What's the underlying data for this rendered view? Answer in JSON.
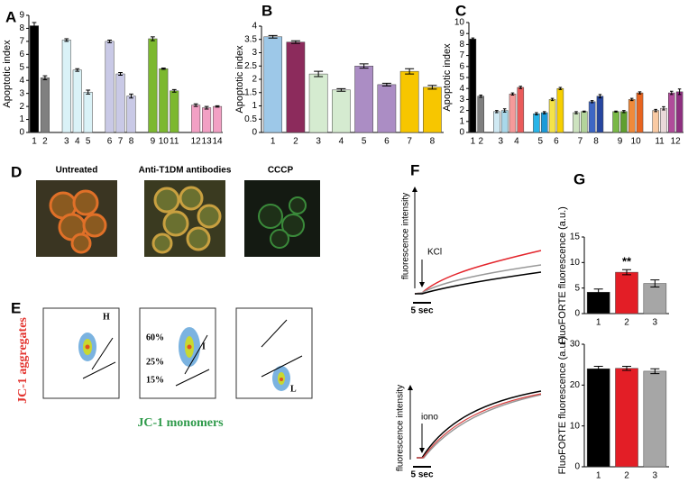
{
  "chart_data": [
    {
      "panel": "A",
      "type": "bar",
      "ylabel": "Apoptotic index",
      "categories": [
        "1",
        "2",
        null,
        "3",
        "4",
        "5",
        null,
        "6",
        "7",
        "8",
        null,
        "9",
        "10",
        "11",
        null,
        "12",
        "13",
        "14"
      ],
      "values": [
        8.2,
        4.2,
        null,
        7.1,
        4.8,
        3.1,
        null,
        7.0,
        4.5,
        2.8,
        null,
        7.2,
        4.9,
        3.2,
        null,
        2.1,
        1.9,
        2.0
      ],
      "errors": [
        0.25,
        0.15,
        null,
        0.1,
        0.1,
        0.15,
        null,
        0.1,
        0.1,
        0.15,
        null,
        0.15,
        0.05,
        0.1,
        null,
        0.1,
        0.1,
        0.05
      ],
      "colors": [
        "#000000",
        "#808080",
        null,
        "#daf2f7",
        "#daf2f7",
        "#daf2f7",
        null,
        "#c9c9e6",
        "#c9c9e6",
        "#c9c9e6",
        null,
        "#7cb82f",
        "#7cb82f",
        "#7cb82f",
        null,
        "#f2a0c4",
        "#f2a0c4",
        "#f2a0c4"
      ],
      "ylim": [
        0,
        9
      ],
      "yticks": [
        0,
        1,
        2,
        3,
        4,
        5,
        6,
        7,
        8,
        9
      ]
    },
    {
      "panel": "B",
      "type": "bar",
      "ylabel": "Apoptotic index",
      "categories": [
        "1",
        "2",
        "3",
        "4",
        "5",
        "6",
        "7",
        "8"
      ],
      "values": [
        3.6,
        3.4,
        2.2,
        1.6,
        2.5,
        1.8,
        2.3,
        1.7
      ],
      "errors": [
        0.05,
        0.05,
        0.1,
        0.05,
        0.08,
        0.05,
        0.1,
        0.07
      ],
      "colors": [
        "#9dc8e8",
        "#8c2b5c",
        "#d5ebd0",
        "#d5ebd0",
        "#ab8dc4",
        "#ab8dc4",
        "#f7c600",
        "#f7c600"
      ],
      "ylim": [
        0,
        4
      ],
      "yticks": [
        0,
        0.5,
        1,
        1.5,
        2,
        2.5,
        3,
        3.5,
        4
      ]
    },
    {
      "panel": "C",
      "type": "bar",
      "ylabel": "Apoptotic index",
      "categories": [
        "1",
        "2",
        null,
        "3",
        null,
        "4",
        null,
        null,
        "5",
        null,
        "6",
        null,
        null,
        "7",
        null,
        "8",
        null,
        null,
        "9",
        null,
        "10",
        null,
        null,
        "11",
        null,
        "12",
        null
      ],
      "values": [
        8.5,
        3.3,
        null,
        1.9,
        2.0,
        3.5,
        4.1,
        null,
        1.7,
        1.8,
        3.0,
        4.0,
        null,
        1.8,
        1.9,
        2.8,
        3.3,
        null,
        1.9,
        1.9,
        3.0,
        3.6,
        null,
        2.0,
        2.2,
        3.6,
        3.7
      ],
      "errors": [
        0.1,
        0.1,
        null,
        0.1,
        0.15,
        0.1,
        0.1,
        null,
        0.1,
        0.1,
        0.1,
        0.1,
        null,
        0.1,
        0.05,
        0.1,
        0.15,
        null,
        0.05,
        0.1,
        0.1,
        0.1,
        null,
        0.1,
        0.15,
        0.15,
        0.25
      ],
      "colors": [
        "#000000",
        "#7f7f7f",
        null,
        "#cfe9f3",
        "#a9d8ea",
        "#f59a9a",
        "#ea5b5b",
        null,
        "#27b4e8",
        "#1c9ad8",
        "#f4e34a",
        "#f6cf00",
        null,
        "#cde3bf",
        "#b3d49b",
        "#3d66c4",
        "#2646a0",
        null,
        "#79b846",
        "#5f9f30",
        "#f08a3a",
        "#e8641f",
        null,
        "#f9caa3",
        "#e9d9d9",
        "#b04c9a",
        "#8f2f80"
      ],
      "ylim": [
        0,
        10
      ],
      "yticks": [
        0,
        1,
        2,
        3,
        4,
        5,
        6,
        7,
        8,
        9,
        10
      ]
    },
    {
      "panel": "G",
      "type": "bar",
      "ylabel": "FluoFORTE fluorescence (a.u.)",
      "categories": [
        "1",
        "2",
        "3"
      ],
      "values": [
        4.2,
        8.1,
        5.9
      ],
      "errors": [
        0.6,
        0.5,
        0.7
      ],
      "colors": [
        "#000000",
        "#e31e26",
        "#a6a6a6"
      ],
      "ylim": [
        0,
        15
      ],
      "yticks": [
        0,
        5,
        10,
        15
      ],
      "annotation": {
        "text": "**",
        "category": "2"
      }
    },
    {
      "type": "bar",
      "ylabel": "FluoFORTE fluorescence (a.u.)",
      "categories": [
        "1",
        "2",
        "3"
      ],
      "values": [
        24.0,
        24.1,
        23.4
      ],
      "errors": [
        0.6,
        0.5,
        0.6
      ],
      "colors": [
        "#000000",
        "#e31e26",
        "#a6a6a6"
      ],
      "ylim": [
        0,
        30
      ],
      "yticks": [
        0,
        10,
        20,
        30
      ]
    }
  ],
  "panel_d": {
    "panel": "D",
    "images": [
      "Untreated",
      "Anti-T1DM antibodies",
      "CCCP"
    ]
  },
  "panel_e": {
    "panel": "E",
    "ylabel": "JC-1 aggregates",
    "xlabel": "JC-1 monomers",
    "plots": [
      {
        "labels": [
          "H"
        ]
      },
      {
        "labels": [
          "60%",
          "25%",
          "15%",
          "I"
        ]
      },
      {
        "labels": [
          "L"
        ]
      }
    ]
  },
  "panel_f": {
    "panel": "F",
    "ylabel": "fluorescence intensity",
    "traces": [
      {
        "stimulus": "KCl",
        "scale": "5 sec"
      },
      {
        "stimulus": "iono",
        "scale": "5 sec"
      }
    ]
  }
}
